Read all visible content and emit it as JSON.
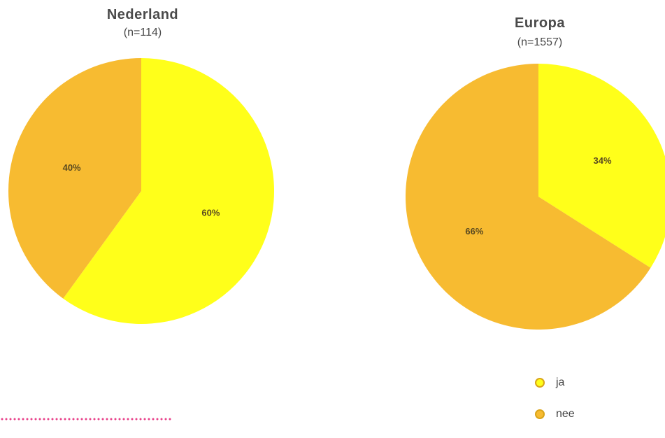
{
  "colors": {
    "ja": "#ffff1a",
    "nee": "#f7bb31",
    "legend_border": "#d9a418",
    "dots": "#e8418a"
  },
  "legend": {
    "items": [
      {
        "label": "ja",
        "color": "#ffff1a"
      },
      {
        "label": "nee",
        "color": "#f7bb31"
      }
    ]
  },
  "chart_data": [
    {
      "type": "pie",
      "title": "Nederland",
      "subtitle": "(n=114)",
      "categories": [
        "ja",
        "nee"
      ],
      "values": [
        60,
        40
      ],
      "labels": [
        "60%",
        "40%"
      ],
      "colors": [
        "#ffff1a",
        "#f7bb31"
      ]
    },
    {
      "type": "pie",
      "title": "Europa",
      "subtitle": "(n=1557)",
      "categories": [
        "ja",
        "nee"
      ],
      "values": [
        34,
        66
      ],
      "labels": [
        "34%",
        "66%"
      ],
      "colors": [
        "#ffff1a",
        "#f7bb31"
      ]
    }
  ]
}
